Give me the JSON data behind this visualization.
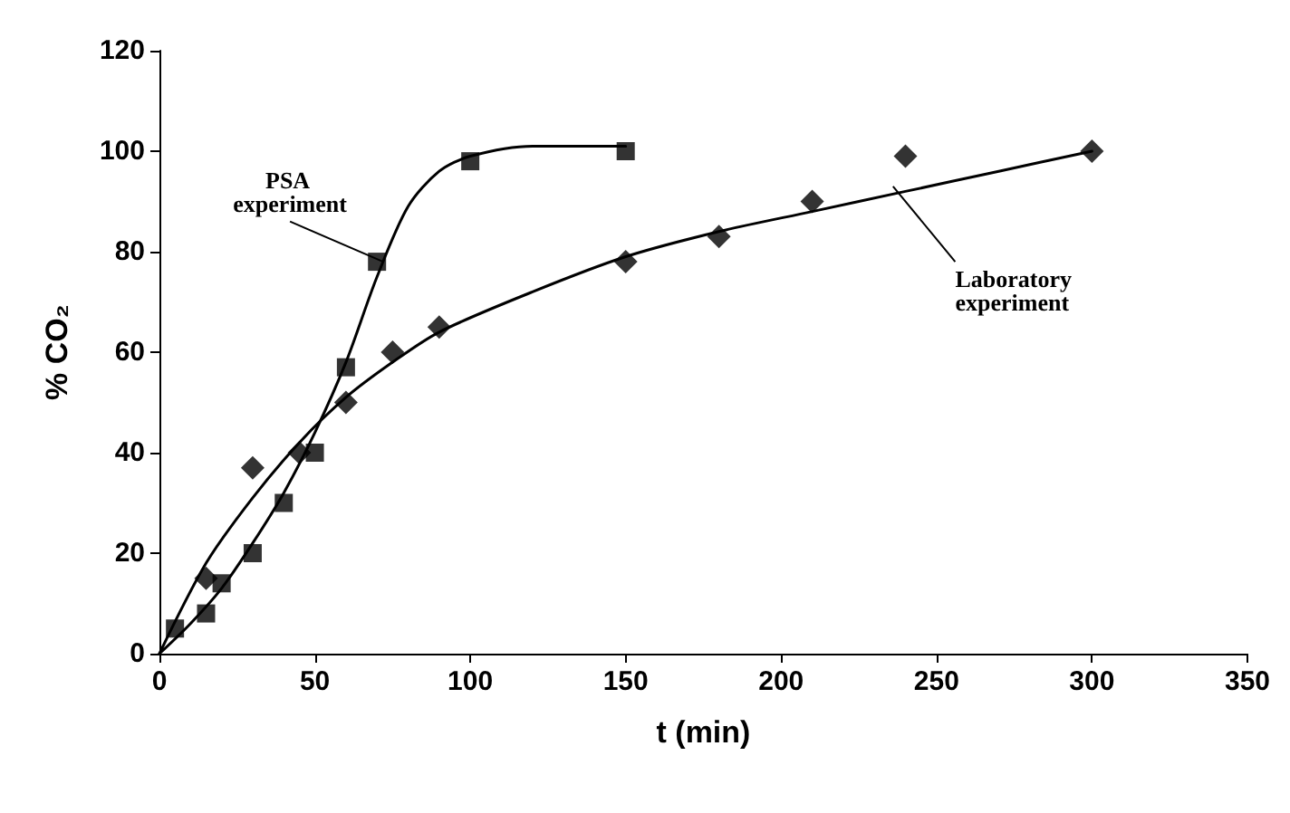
{
  "chart_data": {
    "type": "scatter",
    "xlabel": "t (min)",
    "ylabel": "% CO₂",
    "xlim": [
      0,
      350
    ],
    "xticks": [
      0,
      50,
      100,
      150,
      200,
      250,
      300,
      350
    ],
    "ylim": [
      0,
      120
    ],
    "yticks": [
      0,
      20,
      40,
      60,
      80,
      100,
      120
    ],
    "grid": false,
    "series": [
      {
        "marker": "square",
        "color": "#000000",
        "x": [
          5,
          15,
          20,
          30,
          40,
          50,
          60,
          70,
          100,
          150
        ],
        "values": [
          5,
          8,
          14,
          20,
          30,
          40,
          57,
          78,
          98,
          100
        ]
      },
      {
        "marker": "diamond",
        "color": "#000000",
        "x": [
          15,
          30,
          45,
          60,
          75,
          90,
          150,
          180,
          210,
          240,
          300
        ],
        "values": [
          15,
          37,
          40,
          50,
          60,
          65,
          78,
          83,
          90,
          99,
          100
        ]
      },
      {
        "type": "line",
        "marker": "none",
        "color": "#000000",
        "x": [
          0,
          10,
          20,
          30,
          40,
          50,
          60,
          70,
          80,
          90,
          100,
          120,
          150
        ],
        "values": [
          0,
          6,
          13,
          22,
          32,
          44,
          58,
          75,
          89,
          96,
          99,
          101,
          101
        ]
      },
      {
        "type": "line",
        "marker": "none",
        "color": "#000000",
        "x": [
          0,
          15,
          30,
          45,
          60,
          75,
          90,
          120,
          150,
          180,
          210,
          240,
          270,
          300
        ],
        "values": [
          0,
          18,
          31,
          42,
          51,
          58,
          64,
          72,
          79,
          84,
          88,
          92,
          96,
          100
        ]
      }
    ],
    "annotations": [
      {
        "text": "PSA experiment",
        "x": 72,
        "y": 78
      },
      {
        "text": "Laboratory experiment",
        "x": 236,
        "y": 93
      }
    ]
  }
}
